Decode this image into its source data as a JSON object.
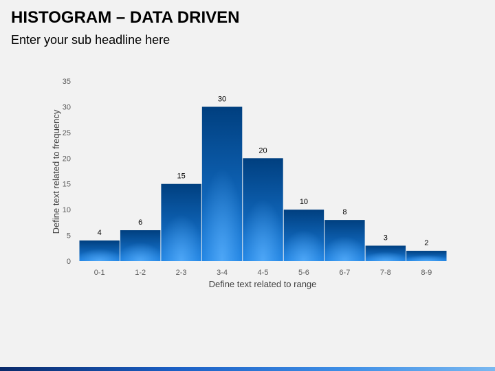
{
  "slide": {
    "title": "HISTOGRAM – DATA DRIVEN",
    "subtitle": "Enter your sub headline here"
  },
  "colors": {
    "bar_top": "#003f7f",
    "bar_bottom": "#1a7fe0",
    "bar_glow": "#5fb4ff",
    "accent_bar": "#1b5fc4"
  },
  "chart_data": {
    "type": "bar",
    "categories": [
      "0-1",
      "1-2",
      "2-3",
      "3-4",
      "4-5",
      "5-6",
      "6-7",
      "7-8",
      "8-9"
    ],
    "values": [
      4,
      6,
      15,
      30,
      20,
      10,
      8,
      3,
      2
    ],
    "xlabel": "Define text related to range",
    "ylabel": "Define text related to frequency",
    "ylim": [
      0,
      35
    ],
    "yticks": [
      0,
      5,
      10,
      15,
      20,
      25,
      30,
      35
    ],
    "grid": false,
    "data_labels": true,
    "legend": "none"
  }
}
